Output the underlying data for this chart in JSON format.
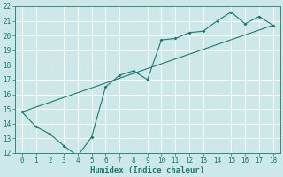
{
  "xlabel": "Humidex (Indice chaleur)",
  "background_color": "#cce8e8",
  "line_color": "#1a7a6e",
  "xlim": [
    -0.5,
    18.5
  ],
  "ylim": [
    12,
    22
  ],
  "xticks": [
    0,
    1,
    2,
    3,
    4,
    5,
    6,
    7,
    8,
    9,
    10,
    11,
    12,
    13,
    14,
    15,
    16,
    17,
    18
  ],
  "yticks": [
    12,
    13,
    14,
    15,
    16,
    17,
    18,
    19,
    20,
    21,
    22
  ],
  "line1_x": [
    0,
    1,
    2,
    3,
    4,
    5,
    6,
    7,
    8,
    9,
    10,
    11,
    12,
    13,
    14,
    15,
    16,
    17,
    18
  ],
  "line1_y": [
    14.8,
    13.8,
    13.3,
    12.5,
    11.8,
    13.1,
    16.5,
    17.3,
    17.6,
    17.0,
    19.7,
    19.8,
    20.2,
    20.3,
    21.0,
    21.6,
    20.8,
    21.3,
    20.7
  ],
  "line2_x": [
    0,
    18
  ],
  "line2_y": [
    14.8,
    20.7
  ],
  "grid_color": "#ffffff",
  "tick_fontsize": 5.5,
  "xlabel_fontsize": 6.5,
  "tick_color": "#1a7a6e",
  "spine_color": "#1a7a6e"
}
